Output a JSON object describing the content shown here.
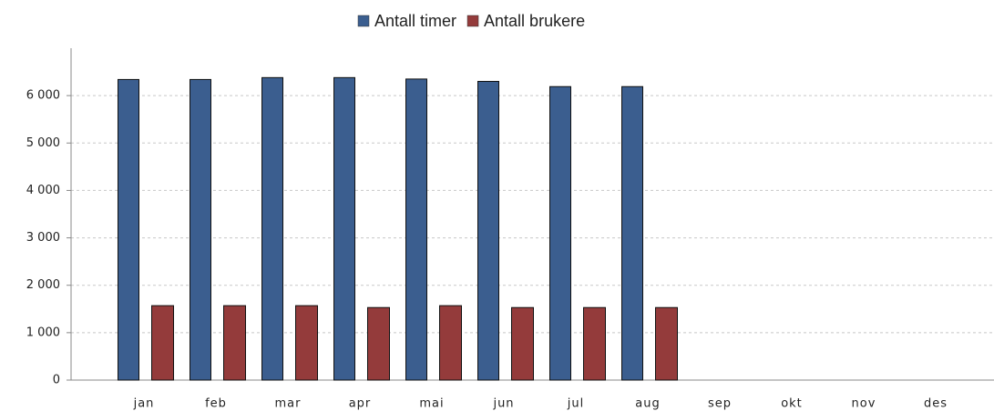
{
  "chart_data": {
    "type": "bar",
    "categories": [
      "jan",
      "feb",
      "mar",
      "apr",
      "mai",
      "jun",
      "jul",
      "aug",
      "sep",
      "okt",
      "nov",
      "des"
    ],
    "series": [
      {
        "name": "Antall timer",
        "color": "#3b5e8f",
        "values": [
          6340,
          6340,
          6380,
          6380,
          6350,
          6300,
          6190,
          6190,
          null,
          null,
          null,
          null
        ]
      },
      {
        "name": "Antall brukere",
        "color": "#943b3b",
        "values": [
          1570,
          1570,
          1570,
          1530,
          1570,
          1530,
          1530,
          1530,
          null,
          null,
          null,
          null
        ]
      }
    ],
    "ylim": [
      0,
      7000
    ],
    "yticks": [
      0,
      {
        "value": 1000,
        "label": "1 000"
      },
      {
        "value": 2000,
        "label": "2 000"
      },
      {
        "value": 3000,
        "label": "3 000"
      },
      {
        "value": 4000,
        "label": "4 000"
      },
      {
        "value": 5000,
        "label": "5 000"
      },
      {
        "value": 6000,
        "label": "6 000"
      }
    ],
    "grid": true
  }
}
